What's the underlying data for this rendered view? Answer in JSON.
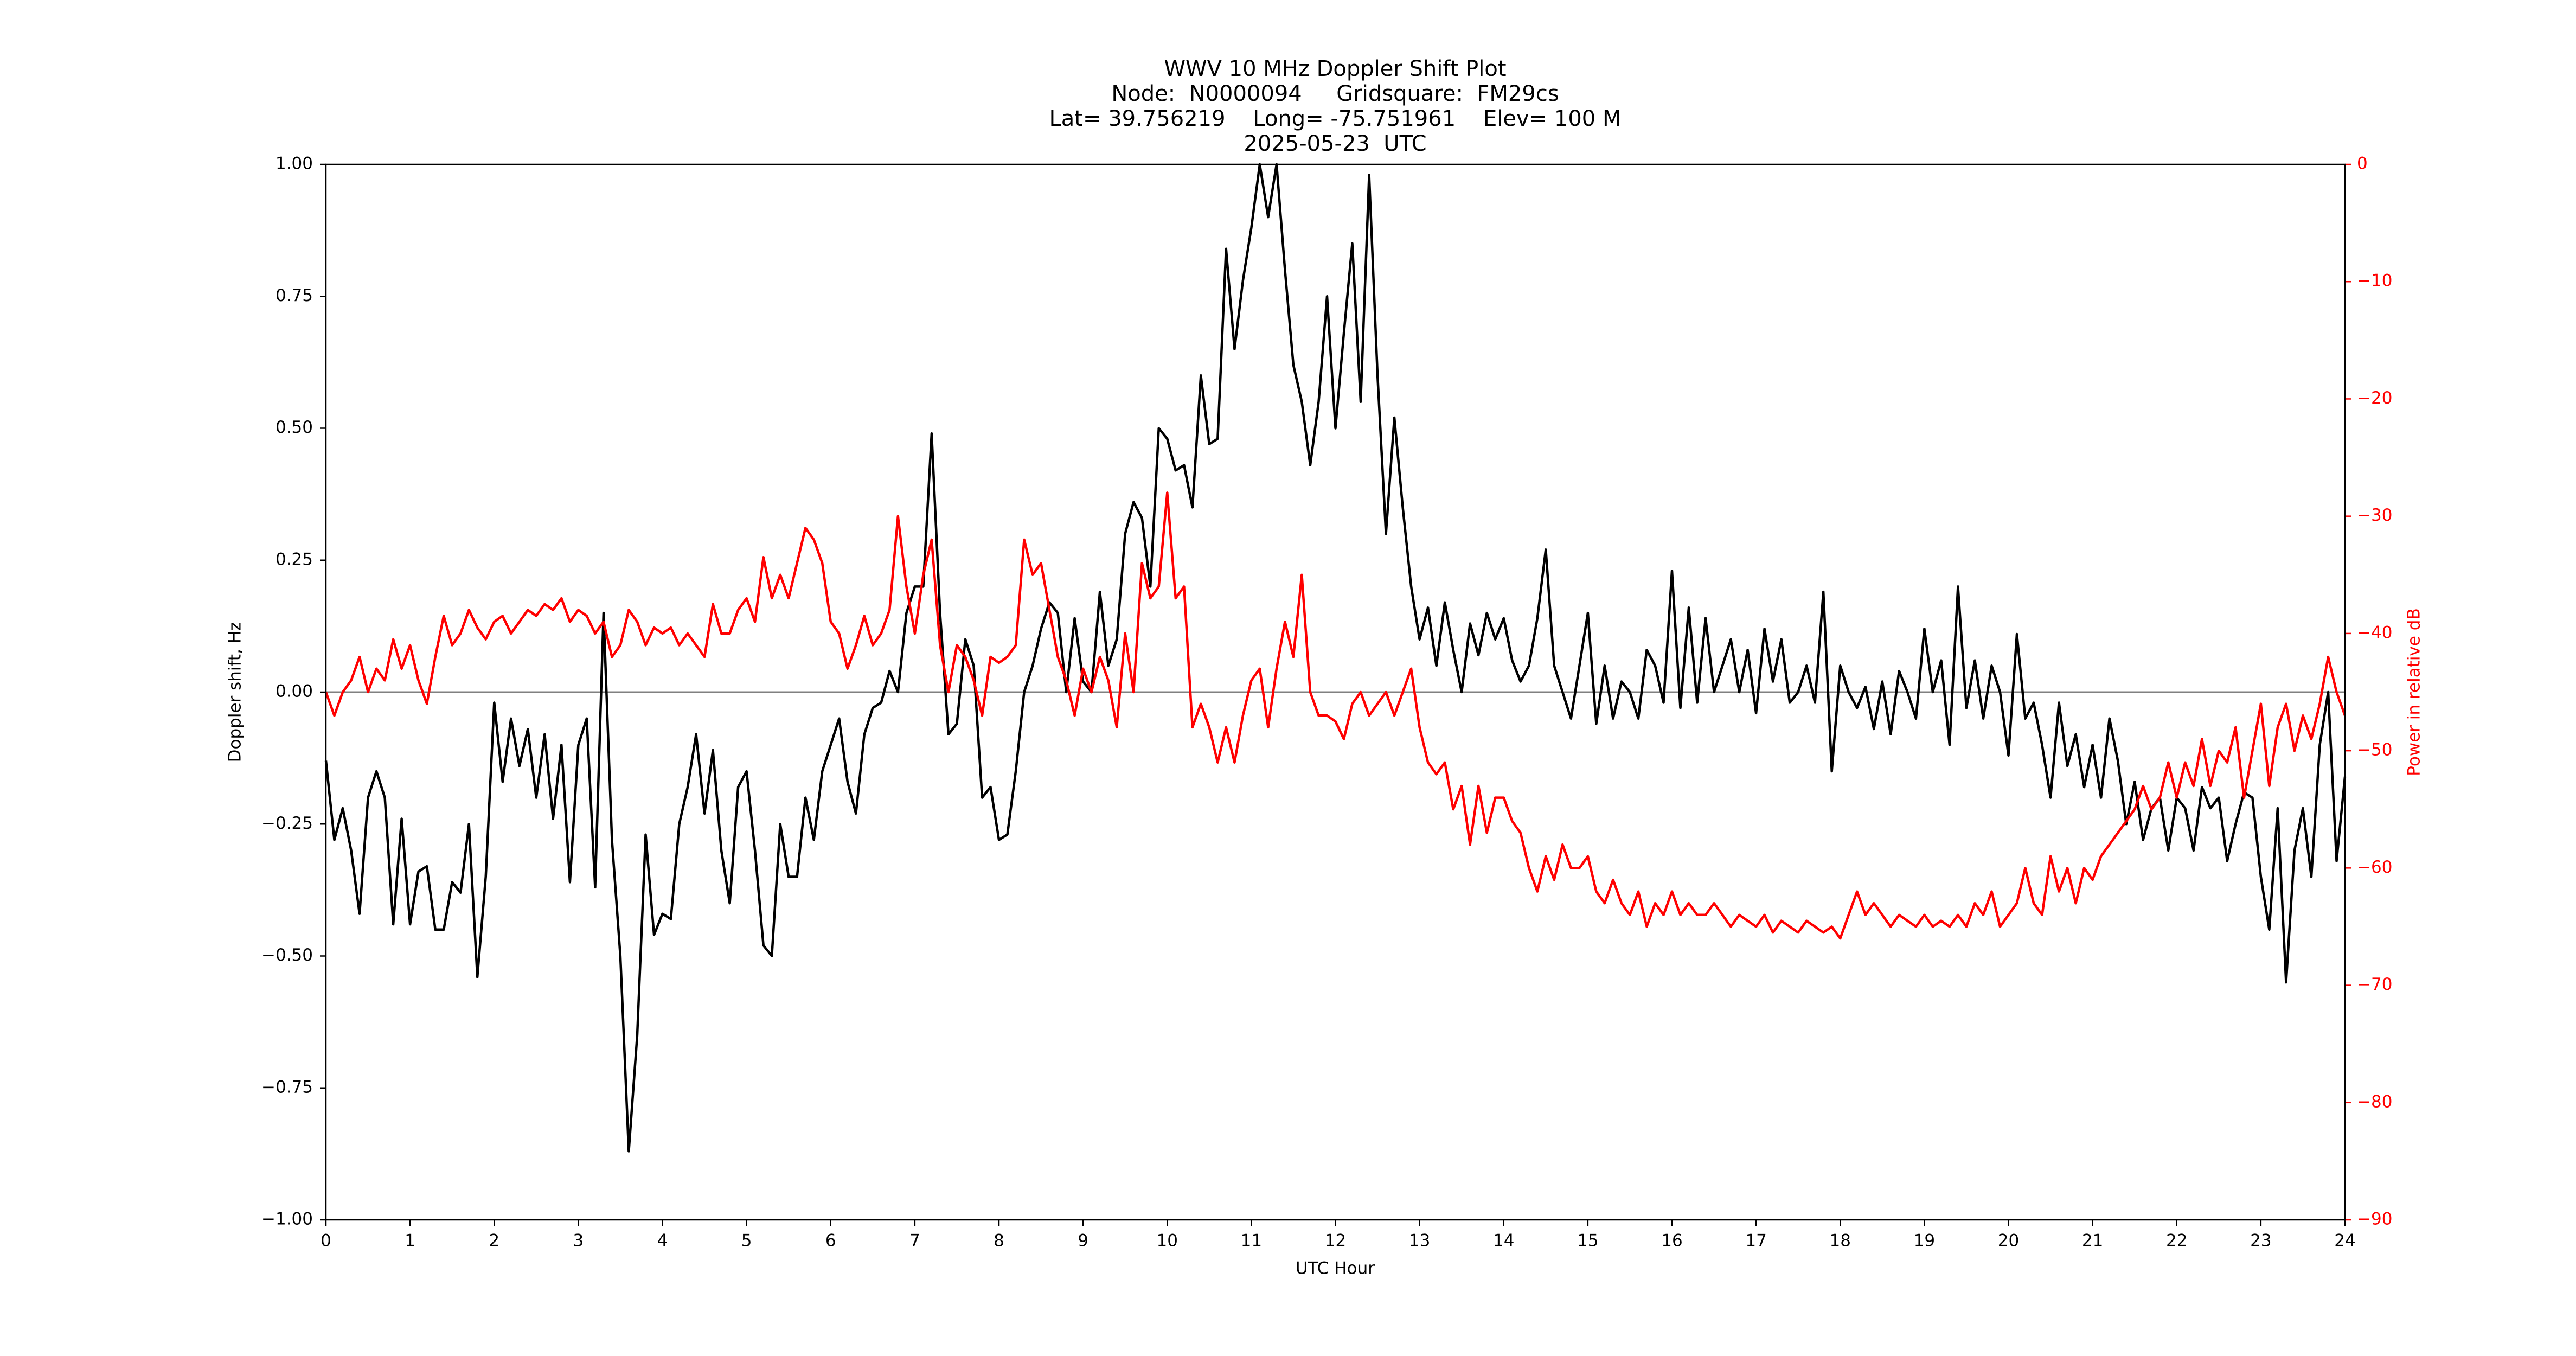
{
  "chart_data": {
    "type": "line",
    "title": "WWV 10 MHz Doppler Shift Plot",
    "subtitles": [
      "Node:  N0000094     Gridsquare:  FM29cs",
      "Lat= 39.756219    Long= -75.751961    Elev= 100 M",
      "2025-05-23  UTC"
    ],
    "x_label": "UTC Hour",
    "y_label": "Doppler shift, Hz",
    "y2_label": "Power in relative dB",
    "xlim": [
      0,
      24
    ],
    "xticks": [
      0,
      1,
      2,
      3,
      4,
      5,
      6,
      7,
      8,
      9,
      10,
      11,
      12,
      13,
      14,
      15,
      16,
      17,
      18,
      19,
      20,
      21,
      22,
      23,
      24
    ],
    "ylim": [
      -1,
      1
    ],
    "yticks": [
      {
        "value": -1,
        "label": "−1.00"
      },
      {
        "value": -0.75,
        "label": "−0.75"
      },
      {
        "value": -0.5,
        "label": "−0.50"
      },
      {
        "value": -0.25,
        "label": "−0.25"
      },
      {
        "value": 0,
        "label": "0.00"
      },
      {
        "value": 0.25,
        "label": "0.25"
      },
      {
        "value": 0.5,
        "label": "0.50"
      },
      {
        "value": 0.75,
        "label": "0.75"
      },
      {
        "value": 1,
        "label": "1.00"
      }
    ],
    "y2lim": [
      -90,
      0
    ],
    "y2ticks": [
      {
        "value": -90,
        "label": "−90"
      },
      {
        "value": -80,
        "label": "−80"
      },
      {
        "value": -70,
        "label": "−70"
      },
      {
        "value": -60,
        "label": "−60"
      },
      {
        "value": -50,
        "label": "−50"
      },
      {
        "value": -40,
        "label": "−40"
      },
      {
        "value": -30,
        "label": "−30"
      },
      {
        "value": -20,
        "label": "−20"
      },
      {
        "value": -10,
        "label": "−10"
      },
      0
    ],
    "y2_color": "#ff0000",
    "reference_line": 0,
    "reference_color": "#808080",
    "grid": false,
    "x": [
      0,
      0.1,
      0.2,
      0.3,
      0.4,
      0.5,
      0.6,
      0.7,
      0.8,
      0.9,
      1,
      1.1,
      1.2,
      1.3,
      1.4,
      1.5,
      1.6,
      1.7,
      1.8,
      1.9,
      2,
      2.1,
      2.2,
      2.3,
      2.4,
      2.5,
      2.6,
      2.7,
      2.8,
      2.9,
      3,
      3.1,
      3.2,
      3.3,
      3.4,
      3.5,
      3.6,
      3.7,
      3.8,
      3.9,
      4,
      4.1,
      4.2,
      4.3,
      4.4,
      4.5,
      4.6,
      4.7,
      4.8,
      4.9,
      5,
      5.1,
      5.2,
      5.3,
      5.4,
      5.5,
      5.6,
      5.7,
      5.8,
      5.9,
      6,
      6.1,
      6.2,
      6.3,
      6.4,
      6.5,
      6.6,
      6.7,
      6.8,
      6.9,
      7,
      7.1,
      7.2,
      7.3,
      7.4,
      7.5,
      7.6,
      7.7,
      7.8,
      7.9,
      8,
      8.1,
      8.2,
      8.3,
      8.4,
      8.5,
      8.6,
      8.7,
      8.8,
      8.9,
      9,
      9.1,
      9.2,
      9.3,
      9.4,
      9.5,
      9.6,
      9.7,
      9.8,
      9.9,
      10,
      10.1,
      10.2,
      10.3,
      10.4,
      10.5,
      10.6,
      10.7,
      10.8,
      10.9,
      11,
      11.1,
      11.2,
      11.3,
      11.4,
      11.5,
      11.6,
      11.7,
      11.8,
      11.9,
      12,
      12.1,
      12.2,
      12.3,
      12.4,
      12.5,
      12.6,
      12.7,
      12.8,
      12.9,
      13,
      13.1,
      13.2,
      13.3,
      13.4,
      13.5,
      13.6,
      13.7,
      13.8,
      13.9,
      14,
      14.1,
      14.2,
      14.3,
      14.4,
      14.5,
      14.6,
      14.7,
      14.8,
      14.9,
      15,
      15.1,
      15.2,
      15.3,
      15.4,
      15.5,
      15.6,
      15.7,
      15.8,
      15.9,
      16,
      16.1,
      16.2,
      16.3,
      16.4,
      16.5,
      16.6,
      16.7,
      16.8,
      16.9,
      17,
      17.1,
      17.2,
      17.3,
      17.4,
      17.5,
      17.6,
      17.7,
      17.8,
      17.9,
      18,
      18.1,
      18.2,
      18.3,
      18.4,
      18.5,
      18.6,
      18.7,
      18.8,
      18.9,
      19,
      19.1,
      19.2,
      19.3,
      19.4,
      19.5,
      19.6,
      19.7,
      19.8,
      19.9,
      20,
      20.1,
      20.2,
      20.3,
      20.4,
      20.5,
      20.6,
      20.7,
      20.8,
      20.9,
      21,
      21.1,
      21.2,
      21.3,
      21.4,
      21.5,
      21.6,
      21.7,
      21.8,
      21.9,
      22,
      22.1,
      22.2,
      22.3,
      22.4,
      22.5,
      22.6,
      22.7,
      22.8,
      22.9,
      23,
      23.1,
      23.2,
      23.3,
      23.4,
      23.5,
      23.6,
      23.7,
      23.8,
      23.9,
      24
    ],
    "series": [
      {
        "color": "#000000",
        "values": [
          -0.13,
          -0.28,
          -0.22,
          -0.3,
          -0.42,
          -0.2,
          -0.15,
          -0.2,
          -0.44,
          -0.24,
          -0.44,
          -0.34,
          -0.33,
          -0.45,
          -0.45,
          -0.36,
          -0.38,
          -0.25,
          -0.54,
          -0.35,
          -0.02,
          -0.17,
          -0.05,
          -0.14,
          -0.07,
          -0.2,
          -0.08,
          -0.24,
          -0.1,
          -0.36,
          -0.1,
          -0.05,
          -0.37,
          0.15,
          -0.28,
          -0.5,
          -0.87,
          -0.65,
          -0.27,
          -0.46,
          -0.42,
          -0.43,
          -0.25,
          -0.18,
          -0.08,
          -0.23,
          -0.11,
          -0.3,
          -0.4,
          -0.18,
          -0.15,
          -0.3,
          -0.48,
          -0.5,
          -0.25,
          -0.35,
          -0.35,
          -0.2,
          -0.28,
          -0.15,
          -0.1,
          -0.05,
          -0.17,
          -0.23,
          -0.08,
          -0.03,
          -0.02,
          0.04,
          0,
          0.15,
          0.2,
          0.2,
          0.49,
          0.15,
          -0.08,
          -0.06,
          0.1,
          0.05,
          -0.2,
          -0.18,
          -0.28,
          -0.27,
          -0.15,
          0,
          0.05,
          0.12,
          0.17,
          0.15,
          0,
          0.14,
          0.02,
          0,
          0.19,
          0.05,
          0.1,
          0.3,
          0.36,
          0.33,
          0.2,
          0.5,
          0.48,
          0.42,
          0.43,
          0.35,
          0.6,
          0.47,
          0.48,
          0.84,
          0.65,
          0.78,
          0.88,
          1,
          0.9,
          1,
          0.8,
          0.62,
          0.55,
          0.43,
          0.55,
          0.75,
          0.5,
          0.68,
          0.85,
          0.55,
          0.98,
          0.6,
          0.3,
          0.52,
          0.35,
          0.2,
          0.1,
          0.16,
          0.05,
          0.17,
          0.08,
          0,
          0.13,
          0.07,
          0.15,
          0.1,
          0.14,
          0.06,
          0.02,
          0.05,
          0.14,
          0.27,
          0.05,
          0,
          -0.05,
          0.05,
          0.15,
          -0.06,
          0.05,
          -0.05,
          0.02,
          0,
          -0.05,
          0.08,
          0.05,
          -0.02,
          0.23,
          -0.03,
          0.16,
          -0.02,
          0.14,
          0,
          0.05,
          0.1,
          0,
          0.08,
          -0.04,
          0.12,
          0.02,
          0.1,
          -0.02,
          0,
          0.05,
          -0.02,
          0.19,
          -0.15,
          0.05,
          0,
          -0.03,
          0.01,
          -0.07,
          0.02,
          -0.08,
          0.04,
          0,
          -0.05,
          0.12,
          0,
          0.06,
          -0.1,
          0.2,
          -0.03,
          0.06,
          -0.05,
          0.05,
          0,
          -0.12,
          0.11,
          -0.05,
          -0.02,
          -0.1,
          -0.2,
          -0.02,
          -0.14,
          -0.08,
          -0.18,
          -0.1,
          -0.2,
          -0.05,
          -0.13,
          -0.25,
          -0.17,
          -0.28,
          -0.22,
          -0.2,
          -0.3,
          -0.2,
          -0.22,
          -0.3,
          -0.18,
          -0.22,
          -0.2,
          -0.32,
          -0.25,
          -0.19,
          -0.2,
          -0.35,
          -0.45,
          -0.22,
          -0.55,
          -0.3,
          -0.22,
          -0.35,
          -0.1,
          0,
          -0.32,
          -0.16
        ]
      },
      {
        "color": "#ff0000",
        "axis": "y2",
        "values": [
          -45,
          -47,
          -45,
          -44,
          -42,
          -45,
          -43,
          -44,
          -40.5,
          -43,
          -41,
          -44,
          -46,
          -42,
          -38.5,
          -41,
          -40,
          -38,
          -39.5,
          -40.5,
          -39,
          -38.5,
          -40,
          -39,
          -38,
          -38.5,
          -37.5,
          -38,
          -37,
          -39,
          -38,
          -38.5,
          -40,
          -39,
          -42,
          -41,
          -38,
          -39,
          -41,
          -39.5,
          -40,
          -39.5,
          -41,
          -40,
          -41,
          -42,
          -37.5,
          -40,
          -40,
          -38,
          -37,
          -39,
          -33.5,
          -37,
          -35,
          -37,
          -34,
          -31,
          -32,
          -34,
          -39,
          -40,
          -43,
          -41,
          -38.5,
          -41,
          -40,
          -38,
          -30,
          -36,
          -40,
          -35,
          -32,
          -41,
          -45,
          -41,
          -42,
          -44,
          -47,
          -42,
          -42.5,
          -42,
          -41,
          -32,
          -35,
          -34,
          -38,
          -42,
          -44,
          -47,
          -43,
          -45,
          -42,
          -44,
          -48,
          -40,
          -45,
          -34,
          -37,
          -36,
          -28,
          -37,
          -36,
          -48,
          -46,
          -48,
          -51,
          -48,
          -51,
          -47,
          -44,
          -43,
          -48,
          -43,
          -39,
          -42,
          -35,
          -45,
          -47,
          -47,
          -47.5,
          -49,
          -46,
          -45,
          -47,
          -46,
          -45,
          -47,
          -45,
          -43,
          -48,
          -51,
          -52,
          -51,
          -55,
          -53,
          -58,
          -53,
          -57,
          -54,
          -54,
          -56,
          -57,
          -60,
          -62,
          -59,
          -61,
          -58,
          -60,
          -60,
          -59,
          -62,
          -63,
          -61,
          -63,
          -64,
          -62,
          -65,
          -63,
          -64,
          -62,
          -64,
          -63,
          -64,
          -64,
          -63,
          -64,
          -65,
          -64,
          -64.5,
          -65,
          -64,
          -65.5,
          -64.5,
          -65,
          -65.5,
          -64.5,
          -65,
          -65.5,
          -65,
          -66,
          -64,
          -62,
          -64,
          -63,
          -64,
          -65,
          -64,
          -64.5,
          -65,
          -64,
          -65,
          -64.5,
          -65,
          -64,
          -65,
          -63,
          -64,
          -62,
          -65,
          -64,
          -63,
          -60,
          -63,
          -64,
          -59,
          -62,
          -60,
          -63,
          -60,
          -61,
          -59,
          -58,
          -57,
          -56,
          -55,
          -53,
          -55,
          -54,
          -51,
          -54,
          -51,
          -53,
          -49,
          -53,
          -50,
          -51,
          -48,
          -54,
          -50,
          -46,
          -53,
          -48,
          -46,
          -50,
          -47,
          -49,
          -46,
          -42,
          -45,
          -47
        ]
      }
    ]
  }
}
